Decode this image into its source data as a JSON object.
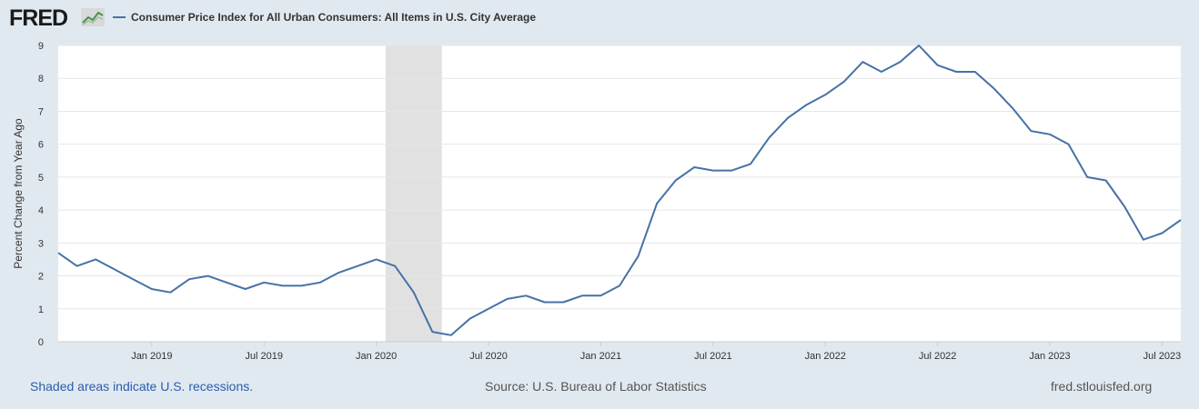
{
  "brand": {
    "logo_text": "FRED",
    "logo_icon": "line-chart-icon"
  },
  "chart_data": {
    "type": "line",
    "title": "Consumer Price Index for All Urban Consumers: All Items in U.S. City Average",
    "ylabel": "Percent Change from Year Ago",
    "xlabel": "",
    "ylim": [
      0,
      9
    ],
    "xlim": [
      "2018-08",
      "2023-08"
    ],
    "yticks": [
      0,
      1,
      2,
      3,
      4,
      5,
      6,
      7,
      8,
      9
    ],
    "xticks": [
      {
        "label": "Jan 2019",
        "date": "2019-01"
      },
      {
        "label": "Jul 2019",
        "date": "2019-07"
      },
      {
        "label": "Jan 2020",
        "date": "2020-01"
      },
      {
        "label": "Jul 2020",
        "date": "2020-07"
      },
      {
        "label": "Jan 2021",
        "date": "2021-01"
      },
      {
        "label": "Jul 2021",
        "date": "2021-07"
      },
      {
        "label": "Jan 2022",
        "date": "2022-01"
      },
      {
        "label": "Jul 2022",
        "date": "2022-07"
      },
      {
        "label": "Jan 2023",
        "date": "2023-01"
      },
      {
        "label": "Jul 2023",
        "date": "2023-07"
      }
    ],
    "grid": true,
    "legend": "top-left",
    "recessions": [
      {
        "start": "2020-02",
        "end": "2020-04"
      }
    ],
    "series": [
      {
        "name": "Consumer Price Index for All Urban Consumers: All Items in U.S. City Average",
        "color": "#4572a7",
        "x": [
          "2018-08",
          "2018-09",
          "2018-10",
          "2018-11",
          "2018-12",
          "2019-01",
          "2019-02",
          "2019-03",
          "2019-04",
          "2019-05",
          "2019-06",
          "2019-07",
          "2019-08",
          "2019-09",
          "2019-10",
          "2019-11",
          "2019-12",
          "2020-01",
          "2020-02",
          "2020-03",
          "2020-04",
          "2020-05",
          "2020-06",
          "2020-07",
          "2020-08",
          "2020-09",
          "2020-10",
          "2020-11",
          "2020-12",
          "2021-01",
          "2021-02",
          "2021-03",
          "2021-04",
          "2021-05",
          "2021-06",
          "2021-07",
          "2021-08",
          "2021-09",
          "2021-10",
          "2021-11",
          "2021-12",
          "2022-01",
          "2022-02",
          "2022-03",
          "2022-04",
          "2022-05",
          "2022-06",
          "2022-07",
          "2022-08",
          "2022-09",
          "2022-10",
          "2022-11",
          "2022-12",
          "2023-01",
          "2023-02",
          "2023-03",
          "2023-04",
          "2023-05",
          "2023-06",
          "2023-07",
          "2023-08"
        ],
        "values": [
          2.7,
          2.3,
          2.5,
          2.2,
          1.9,
          1.6,
          1.5,
          1.9,
          2.0,
          1.8,
          1.6,
          1.8,
          1.7,
          1.7,
          1.8,
          2.1,
          2.3,
          2.5,
          2.3,
          1.5,
          0.3,
          0.2,
          0.7,
          1.0,
          1.3,
          1.4,
          1.2,
          1.2,
          1.4,
          1.4,
          1.7,
          2.6,
          4.2,
          4.9,
          5.3,
          5.2,
          5.2,
          5.4,
          6.2,
          6.8,
          7.2,
          7.5,
          7.9,
          8.5,
          8.2,
          8.5,
          9.0,
          8.4,
          8.2,
          8.2,
          7.7,
          7.1,
          6.4,
          6.3,
          6.0,
          5.0,
          4.9,
          4.1,
          3.1,
          3.3,
          3.7
        ]
      }
    ]
  },
  "footer": {
    "recession_note": "Shaded areas indicate U.S. recessions.",
    "source": "Source: U.S. Bureau of Labor Statistics",
    "site": "fred.stlouisfed.org"
  }
}
